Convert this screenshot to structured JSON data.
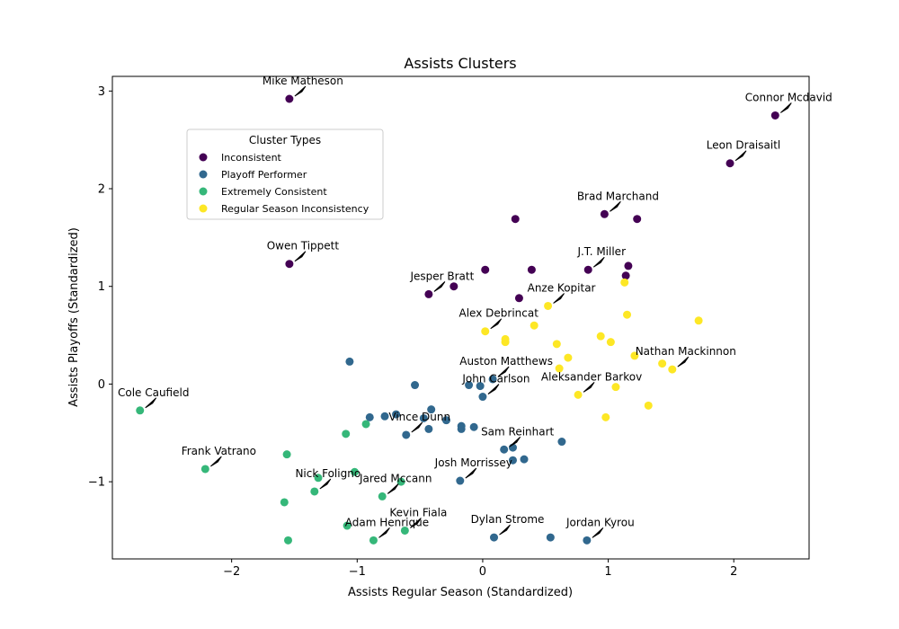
{
  "chart_data": {
    "type": "scatter",
    "title": "Assists Clusters",
    "xlabel": "Assists Regular Season (Standardized)",
    "ylabel": "Assists Playoffs (Standardized)",
    "xlim": [
      -2.95,
      2.6
    ],
    "ylim": [
      -1.79,
      3.15
    ],
    "xticks": [
      -2,
      -1,
      0,
      1,
      2
    ],
    "yticks": [
      -1,
      0,
      1,
      2,
      3
    ],
    "xtick_labels": [
      "−2",
      "−1",
      "0",
      "1",
      "2"
    ],
    "ytick_labels": [
      "−1",
      "0",
      "1",
      "2",
      "3"
    ],
    "grid": false,
    "legend": {
      "title": "Cluster Types",
      "placement": "upper-left"
    },
    "series": [
      {
        "name": "Inconsistent",
        "color": "#440154",
        "points": [
          [
            -1.54,
            2.92
          ],
          [
            2.33,
            2.75
          ],
          [
            1.97,
            2.26
          ],
          [
            0.97,
            1.74
          ],
          [
            0.26,
            1.69
          ],
          [
            1.23,
            1.69
          ],
          [
            -1.54,
            1.23
          ],
          [
            0.02,
            1.17
          ],
          [
            0.39,
            1.17
          ],
          [
            0.84,
            1.17
          ],
          [
            1.16,
            1.21
          ],
          [
            1.14,
            1.11
          ],
          [
            -0.23,
            1.0
          ],
          [
            -0.43,
            0.92
          ],
          [
            0.29,
            0.88
          ]
        ]
      },
      {
        "name": "Playoff Performer",
        "color": "#31688e",
        "points": [
          [
            -1.06,
            0.23
          ],
          [
            -0.54,
            -0.01
          ],
          [
            -0.11,
            -0.01
          ],
          [
            -0.02,
            -0.02
          ],
          [
            0.08,
            0.05
          ],
          [
            0.0,
            -0.13
          ],
          [
            -0.41,
            -0.26
          ],
          [
            -0.69,
            -0.31
          ],
          [
            -0.78,
            -0.33
          ],
          [
            -0.9,
            -0.34
          ],
          [
            -0.47,
            -0.35
          ],
          [
            -0.29,
            -0.37
          ],
          [
            -0.17,
            -0.43
          ],
          [
            -0.07,
            -0.44
          ],
          [
            -0.17,
            -0.46
          ],
          [
            -0.43,
            -0.46
          ],
          [
            -0.61,
            -0.52
          ],
          [
            0.63,
            -0.59
          ],
          [
            0.24,
            -0.65
          ],
          [
            0.17,
            -0.67
          ],
          [
            0.24,
            -0.78
          ],
          [
            0.33,
            -0.77
          ],
          [
            -0.18,
            -0.99
          ],
          [
            0.09,
            -1.57
          ],
          [
            0.54,
            -1.57
          ],
          [
            0.83,
            -1.6
          ]
        ]
      },
      {
        "name": "Extremely Consistent",
        "color": "#35b779",
        "points": [
          [
            -2.73,
            -0.27
          ],
          [
            -0.93,
            -0.41
          ],
          [
            -1.09,
            -0.51
          ],
          [
            -1.56,
            -0.72
          ],
          [
            -2.21,
            -0.87
          ],
          [
            -1.02,
            -0.9
          ],
          [
            -1.31,
            -0.96
          ],
          [
            -0.65,
            -1.0
          ],
          [
            -1.34,
            -1.1
          ],
          [
            -0.8,
            -1.15
          ],
          [
            -1.58,
            -1.21
          ],
          [
            -1.08,
            -1.45
          ],
          [
            -0.62,
            -1.5
          ],
          [
            -0.87,
            -1.6
          ],
          [
            -1.55,
            -1.6
          ]
        ]
      },
      {
        "name": "Regular Season Inconsistency",
        "color": "#fde725",
        "points": [
          [
            1.13,
            1.04
          ],
          [
            0.52,
            0.8
          ],
          [
            1.15,
            0.71
          ],
          [
            1.72,
            0.65
          ],
          [
            0.41,
            0.6
          ],
          [
            0.02,
            0.54
          ],
          [
            0.94,
            0.49
          ],
          [
            0.18,
            0.46
          ],
          [
            0.18,
            0.43
          ],
          [
            1.02,
            0.43
          ],
          [
            0.59,
            0.41
          ],
          [
            0.68,
            0.27
          ],
          [
            1.21,
            0.29
          ],
          [
            1.43,
            0.21
          ],
          [
            0.61,
            0.16
          ],
          [
            1.51,
            0.15
          ],
          [
            1.06,
            -0.03
          ],
          [
            0.76,
            -0.11
          ],
          [
            1.32,
            -0.22
          ],
          [
            0.98,
            -0.34
          ]
        ]
      }
    ],
    "annotations": [
      {
        "text": "Mike Matheson",
        "x": -1.54,
        "y": 2.92
      },
      {
        "text": "Connor Mcdavid",
        "x": 2.33,
        "y": 2.75
      },
      {
        "text": "Leon Draisaitl",
        "x": 1.97,
        "y": 2.26
      },
      {
        "text": "Brad Marchand",
        "x": 0.97,
        "y": 1.74
      },
      {
        "text": "Owen Tippett",
        "x": -1.54,
        "y": 1.23
      },
      {
        "text": "J.T. Miller",
        "x": 0.84,
        "y": 1.17
      },
      {
        "text": "Jesper Bratt",
        "x": -0.43,
        "y": 0.92
      },
      {
        "text": "Anze Kopitar",
        "x": 0.52,
        "y": 0.8
      },
      {
        "text": "Alex Debrincat",
        "x": 0.02,
        "y": 0.54
      },
      {
        "text": "Nathan Mackinnon",
        "x": 1.51,
        "y": 0.15
      },
      {
        "text": "Auston Matthews",
        "x": 0.08,
        "y": 0.05
      },
      {
        "text": "John Carlson",
        "x": 0.0,
        "y": -0.13
      },
      {
        "text": "Aleksander Barkov",
        "x": 0.76,
        "y": -0.11
      },
      {
        "text": "Cole Caufield",
        "x": -2.73,
        "y": -0.27
      },
      {
        "text": "Vince Dunn",
        "x": -0.61,
        "y": -0.52
      },
      {
        "text": "Sam Reinhart",
        "x": 0.17,
        "y": -0.67
      },
      {
        "text": "Frank Vatrano",
        "x": -2.21,
        "y": -0.87
      },
      {
        "text": "Josh Morrissey",
        "x": -0.18,
        "y": -0.99
      },
      {
        "text": "Nick Foligno",
        "x": -1.34,
        "y": -1.1
      },
      {
        "text": "Jared Mccann",
        "x": -0.8,
        "y": -1.15
      },
      {
        "text": "Kevin Fiala",
        "x": -0.62,
        "y": -1.5
      },
      {
        "text": "Adam Henrique",
        "x": -0.87,
        "y": -1.6
      },
      {
        "text": "Dylan Strome",
        "x": 0.09,
        "y": -1.57
      },
      {
        "text": "Jordan Kyrou",
        "x": 0.83,
        "y": -1.6
      }
    ]
  }
}
